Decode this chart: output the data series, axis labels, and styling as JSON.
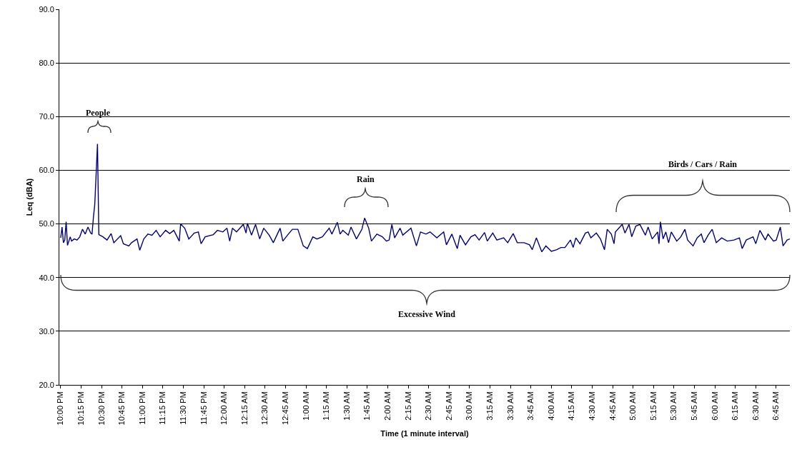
{
  "chart_data": {
    "type": "line",
    "xlabel": "Time (1 minute interval)",
    "ylabel": "Leq (dBA)",
    "color": "#000080",
    "x": [
      "2000-01-01T22:00",
      "2000-01-01T22:01",
      "2000-01-01T22:02",
      "2000-01-01T22:03",
      "2000-01-01T22:04",
      "2000-01-01T22:05",
      "2000-01-01T22:07",
      "2000-01-01T22:08",
      "2000-01-01T22:10",
      "2000-01-01T22:12",
      "2000-01-01T22:14",
      "2000-01-01T22:16",
      "2000-01-01T22:18",
      "2000-01-01T22:20",
      "2000-01-01T22:22",
      "2000-01-01T22:23",
      "2000-01-01T22:24",
      "2000-01-01T22:25",
      "2000-01-01T22:27",
      "2000-01-01T22:28",
      "2000-01-01T22:31",
      "2000-01-01T22:34",
      "2000-01-01T22:37",
      "2000-01-01T22:39",
      "2000-01-01T22:44",
      "2000-01-01T22:46",
      "2000-01-01T22:50",
      "2000-01-01T22:52",
      "2000-01-01T22:56",
      "2000-01-01T22:58",
      "2000-01-01T23:01",
      "2000-01-01T23:04",
      "2000-01-01T23:07",
      "2000-01-01T23:10",
      "2000-01-01T23:13",
      "2000-01-01T23:17",
      "2000-01-01T23:20",
      "2000-01-01T23:23",
      "2000-01-01T23:27",
      "2000-01-01T23:28",
      "2000-01-01T23:31",
      "2000-01-01T23:34",
      "2000-01-01T23:38",
      "2000-01-01T23:41",
      "2000-01-01T23:43",
      "2000-01-01T23:46",
      "2000-01-01T23:52",
      "2000-01-01T23:55",
      "2000-01-01T23:59",
      "2000-01-02T00:02",
      "2000-01-02T00:04",
      "2000-01-02T00:06",
      "2000-01-02T00:09",
      "2000-01-02T00:14",
      "2000-01-02T00:16",
      "2000-01-02T00:17",
      "2000-01-02T00:20",
      "2000-01-02T00:23",
      "2000-01-02T00:26",
      "2000-01-02T00:29",
      "2000-01-02T00:33",
      "2000-01-02T00:36",
      "2000-01-02T00:41",
      "2000-01-02T00:43",
      "2000-01-02T00:47",
      "2000-01-02T00:50",
      "2000-01-02T00:54",
      "2000-01-02T00:58",
      "2000-01-02T01:01",
      "2000-01-02T01:05",
      "2000-01-02T01:08",
      "2000-01-02T01:12",
      "2000-01-02T01:17",
      "2000-01-02T01:19",
      "2000-01-02T01:21",
      "2000-01-02T01:23",
      "2000-01-02T01:25",
      "2000-01-02T01:27",
      "2000-01-02T01:31",
      "2000-01-02T01:33",
      "2000-01-02T01:37",
      "2000-01-02T01:39",
      "2000-01-02T01:41",
      "2000-01-02T01:43",
      "2000-01-02T01:46",
      "2000-01-02T01:48",
      "2000-01-02T01:52",
      "2000-01-02T01:56",
      "2000-01-02T01:59",
      "2000-01-02T02:01",
      "2000-01-02T02:03",
      "2000-01-02T02:05",
      "2000-01-02T02:09",
      "2000-01-02T02:11",
      "2000-01-02T02:17",
      "2000-01-02T02:21",
      "2000-01-02T02:24",
      "2000-01-02T02:28",
      "2000-01-02T02:31",
      "2000-01-02T02:36",
      "2000-01-02T02:41",
      "2000-01-02T02:43",
      "2000-01-02T02:47",
      "2000-01-02T02:51",
      "2000-01-02T02:53",
      "2000-01-02T02:57",
      "2000-01-02T03:01",
      "2000-01-02T03:04",
      "2000-01-02T03:07",
      "2000-01-02T03:11",
      "2000-01-02T03:13",
      "2000-01-02T03:17",
      "2000-01-02T03:20",
      "2000-01-02T03:25",
      "2000-01-02T03:28",
      "2000-01-02T03:32",
      "2000-01-02T03:35",
      "2000-01-02T03:40",
      "2000-01-02T03:44",
      "2000-01-02T03:46",
      "2000-01-02T03:49",
      "2000-01-02T03:53",
      "2000-01-02T03:56",
      "2000-01-02T04:00",
      "2000-01-02T04:04",
      "2000-01-02T04:07",
      "2000-01-02T04:10",
      "2000-01-02T04:14",
      "2000-01-02T04:16",
      "2000-01-02T04:18",
      "2000-01-02T04:21",
      "2000-01-02T04:25",
      "2000-01-02T04:27",
      "2000-01-02T04:29",
      "2000-01-02T04:33",
      "2000-01-02T04:36",
      "2000-01-02T04:39",
      "2000-01-02T04:41",
      "2000-01-02T04:44",
      "2000-01-02T04:46",
      "2000-01-02T04:47",
      "2000-01-02T04:52",
      "2000-01-02T04:54",
      "2000-01-02T04:57",
      "2000-01-02T04:59",
      "2000-01-02T05:02",
      "2000-01-02T05:05",
      "2000-01-02T05:09",
      "2000-01-02T05:11",
      "2000-01-02T05:14",
      "2000-01-02T05:18",
      "2000-01-02T05:19",
      "2000-01-02T05:20",
      "2000-01-02T05:22",
      "2000-01-02T05:24",
      "2000-01-02T05:26",
      "2000-01-02T05:28",
      "2000-01-02T05:32",
      "2000-01-02T05:35",
      "2000-01-02T05:38",
      "2000-01-02T05:40",
      "2000-01-02T05:44",
      "2000-01-02T05:47",
      "2000-01-02T05:50",
      "2000-01-02T05:52",
      "2000-01-02T05:55",
      "2000-01-02T05:58",
      "2000-01-02T06:01",
      "2000-01-02T06:05",
      "2000-01-02T06:09",
      "2000-01-02T06:14",
      "2000-01-02T06:18",
      "2000-01-02T06:20",
      "2000-01-02T06:23",
      "2000-01-02T06:28",
      "2000-01-02T06:30",
      "2000-01-02T06:33",
      "2000-01-02T06:37",
      "2000-01-02T06:39",
      "2000-01-02T06:43",
      "2000-01-02T06:45",
      "2000-01-02T06:48",
      "2000-01-02T06:50",
      "2000-01-02T06:53",
      "2000-01-02T06:55"
    ],
    "values": [
      47.4,
      49.4,
      46.5,
      47.0,
      50.4,
      46.0,
      47.6,
      46.8,
      47.2,
      47.0,
      47.6,
      49.0,
      48.1,
      49.4,
      48.3,
      48.1,
      51.2,
      53.6,
      64.9,
      48.0,
      47.6,
      47.0,
      48.2,
      46.5,
      47.8,
      46.3,
      45.9,
      46.5,
      47.2,
      45.1,
      47.2,
      48.1,
      47.9,
      48.8,
      47.6,
      48.8,
      48.2,
      48.8,
      46.8,
      50.0,
      49.2,
      47.2,
      48.3,
      48.5,
      46.3,
      47.6,
      48.0,
      48.8,
      48.5,
      49.2,
      46.8,
      49.2,
      48.5,
      49.9,
      48.3,
      50.1,
      47.9,
      49.9,
      47.2,
      49.2,
      47.9,
      46.5,
      49.2,
      46.8,
      48.1,
      49.0,
      49.0,
      45.9,
      45.4,
      47.6,
      47.2,
      47.6,
      49.2,
      48.1,
      49.2,
      50.3,
      48.1,
      48.8,
      47.9,
      49.4,
      47.2,
      48.1,
      49.0,
      51.1,
      49.2,
      46.8,
      48.1,
      47.6,
      46.8,
      47.0,
      49.9,
      47.4,
      49.2,
      47.9,
      49.2,
      45.9,
      48.5,
      48.1,
      48.5,
      47.4,
      48.5,
      46.1,
      48.1,
      45.4,
      47.9,
      46.1,
      47.6,
      48.0,
      47.0,
      48.4,
      46.8,
      48.3,
      47.0,
      47.4,
      46.5,
      48.2,
      46.5,
      46.5,
      46.1,
      45.2,
      47.4,
      44.8,
      45.9,
      44.9,
      45.2,
      45.6,
      45.6,
      47.0,
      45.6,
      47.4,
      46.3,
      48.3,
      48.5,
      47.4,
      48.3,
      47.2,
      45.2,
      49.0,
      48.1,
      46.3,
      48.5,
      49.9,
      48.3,
      49.9,
      47.6,
      49.6,
      49.9,
      47.9,
      49.4,
      47.2,
      48.5,
      46.3,
      50.4,
      47.2,
      48.5,
      46.5,
      48.5,
      46.8,
      47.6,
      49.0,
      47.0,
      45.9,
      47.4,
      48.1,
      46.5,
      47.9,
      49.0,
      46.5,
      47.4,
      46.8,
      47.0,
      47.4,
      45.4,
      47.0,
      47.6,
      46.3,
      48.8,
      47.0,
      48.1,
      46.8,
      47.0,
      49.4,
      45.9,
      47.0,
      47.2
    ],
    "xlim": [
      "2000-01-01T21:59",
      "2000-01-02T06:55"
    ],
    "xticks": [
      {
        "value": "2000-01-01T22:00",
        "label": "10:00 PM"
      },
      {
        "value": "2000-01-01T22:15",
        "label": "10:15 PM"
      },
      {
        "value": "2000-01-01T22:30",
        "label": "10:30 PM"
      },
      {
        "value": "2000-01-01T22:45",
        "label": "10:45 PM"
      },
      {
        "value": "2000-01-01T23:00",
        "label": "11:00 PM"
      },
      {
        "value": "2000-01-01T23:15",
        "label": "11:15 PM"
      },
      {
        "value": "2000-01-01T23:30",
        "label": "11:30 PM"
      },
      {
        "value": "2000-01-01T23:45",
        "label": "11:45 PM"
      },
      {
        "value": "2000-01-02T00:00",
        "label": "12:00 AM"
      },
      {
        "value": "2000-01-02T00:15",
        "label": "12:15 AM"
      },
      {
        "value": "2000-01-02T00:30",
        "label": "12:30 AM"
      },
      {
        "value": "2000-01-02T00:45",
        "label": "12:45 AM"
      },
      {
        "value": "2000-01-02T01:00",
        "label": "1:00 AM"
      },
      {
        "value": "2000-01-02T01:15",
        "label": "1:15 AM"
      },
      {
        "value": "2000-01-02T01:30",
        "label": "1:30 AM"
      },
      {
        "value": "2000-01-02T01:45",
        "label": "1:45 AM"
      },
      {
        "value": "2000-01-02T02:00",
        "label": "2:00 AM"
      },
      {
        "value": "2000-01-02T02:15",
        "label": "2:15 AM"
      },
      {
        "value": "2000-01-02T02:30",
        "label": "2:30 AM"
      },
      {
        "value": "2000-01-02T02:45",
        "label": "2:45 AM"
      },
      {
        "value": "2000-01-02T03:00",
        "label": "3:00 AM"
      },
      {
        "value": "2000-01-02T03:15",
        "label": "3:15 AM"
      },
      {
        "value": "2000-01-02T03:30",
        "label": "3:30 AM"
      },
      {
        "value": "2000-01-02T03:45",
        "label": "3:45 AM"
      },
      {
        "value": "2000-01-02T04:00",
        "label": "4:00 AM"
      },
      {
        "value": "2000-01-02T04:15",
        "label": "4:15 AM"
      },
      {
        "value": "2000-01-02T04:30",
        "label": "4:30 AM"
      },
      {
        "value": "2000-01-02T04:45",
        "label": "4:45 AM"
      },
      {
        "value": "2000-01-02T05:00",
        "label": "5:00 AM"
      },
      {
        "value": "2000-01-02T05:15",
        "label": "5:15 AM"
      },
      {
        "value": "2000-01-02T05:30",
        "label": "5:30 AM"
      },
      {
        "value": "2000-01-02T05:45",
        "label": "5:45 AM"
      },
      {
        "value": "2000-01-02T06:00",
        "label": "6:00 AM"
      },
      {
        "value": "2000-01-02T06:15",
        "label": "6:15 AM"
      },
      {
        "value": "2000-01-02T06:30",
        "label": "6:30 AM"
      },
      {
        "value": "2000-01-02T06:45",
        "label": "6:45 AM"
      }
    ],
    "ylim": [
      20,
      90
    ],
    "yticks": [
      {
        "value": 20,
        "label": "20.0"
      },
      {
        "value": 30,
        "label": "30.0"
      },
      {
        "value": 40,
        "label": "40.0"
      },
      {
        "value": 50,
        "label": "50.0"
      },
      {
        "value": 60,
        "label": "60.0"
      },
      {
        "value": 70,
        "label": "70.0"
      },
      {
        "value": 80,
        "label": "80.0"
      },
      {
        "value": 90,
        "label": "90.0"
      }
    ],
    "grid": "y",
    "marker": "none",
    "line_style": "solid",
    "annotations": [
      "People",
      "Rain",
      "Birds / Cars / Rain",
      "Excessive Wind"
    ]
  }
}
